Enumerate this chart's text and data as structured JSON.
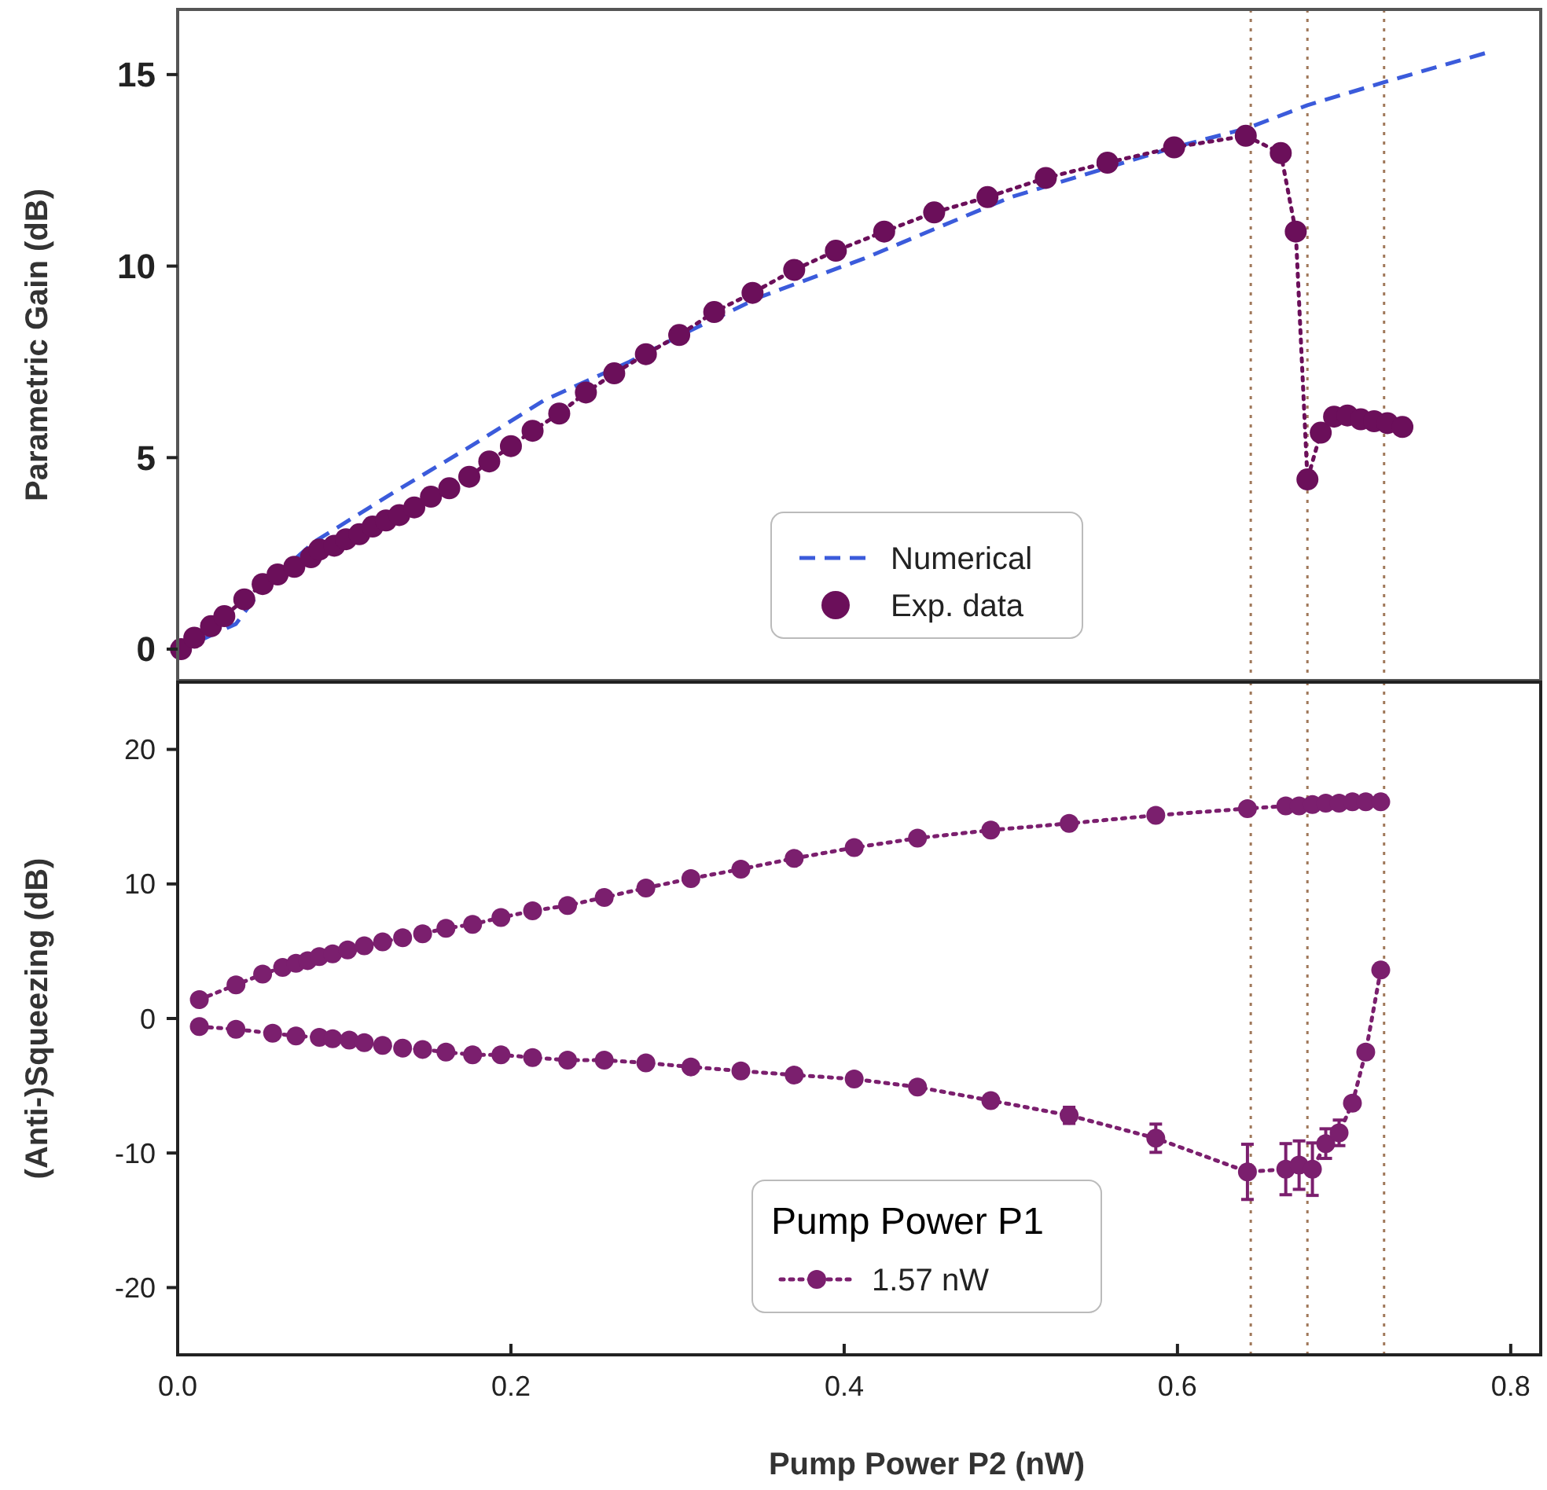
{
  "chart_data": [
    {
      "type": "line",
      "ylabel": "Parametric Gain (dB)",
      "xlim": [
        0,
        0.818
      ],
      "ylim": [
        -0.82,
        16.7
      ],
      "yticks": [
        0,
        5,
        10,
        15
      ],
      "tick_labels": "y",
      "legend": "bottom",
      "ref_lines": [
        {
          "axis": "x",
          "value": 0.644,
          "color": "#a0785a",
          "line_style": "dotted"
        },
        {
          "axis": "x",
          "value": 0.678,
          "color": "#a0785a",
          "line_style": "dotted"
        },
        {
          "axis": "x",
          "value": 0.724,
          "color": "#a0785a",
          "line_style": "dotted"
        }
      ],
      "series": [
        {
          "name": "Numerical",
          "color": "#3b5bdb",
          "line_style": "dashed",
          "marker": "none",
          "x": [
            0.002,
            0.035,
            0.051,
            0.082,
            0.13,
            0.176,
            0.22,
            0.271,
            0.302,
            0.35,
            0.412,
            0.5,
            0.598,
            0.642,
            0.678,
            0.724,
            0.788
          ],
          "values": [
            0,
            0.66,
            1.6,
            2.8,
            4.1,
            5.3,
            6.5,
            7.5,
            8.2,
            9.2,
            10.2,
            11.8,
            13.1,
            13.6,
            14.2,
            14.8,
            15.6
          ]
        },
        {
          "name": "Exp. data",
          "color": "#6b0f5a",
          "line_style": "dotted",
          "marker": "circle",
          "x": [
            0.002,
            0.01,
            0.02,
            0.028,
            0.04,
            0.051,
            0.06,
            0.07,
            0.08,
            0.085,
            0.094,
            0.101,
            0.109,
            0.117,
            0.125,
            0.133,
            0.142,
            0.152,
            0.163,
            0.175,
            0.187,
            0.2,
            0.213,
            0.229,
            0.245,
            0.262,
            0.281,
            0.301,
            0.322,
            0.345,
            0.37,
            0.395,
            0.424,
            0.454,
            0.486,
            0.521,
            0.558,
            0.598,
            0.641,
            0.662,
            0.671,
            0.678,
            0.686,
            0.694,
            0.702,
            0.71,
            0.718,
            0.726,
            0.735
          ],
          "values": [
            0,
            0.3,
            0.6,
            0.86,
            1.3,
            1.7,
            1.95,
            2.15,
            2.4,
            2.6,
            2.7,
            2.87,
            3.0,
            3.2,
            3.36,
            3.5,
            3.7,
            3.98,
            4.2,
            4.5,
            4.9,
            5.3,
            5.7,
            6.15,
            6.7,
            7.2,
            7.7,
            8.2,
            8.8,
            9.3,
            9.9,
            10.4,
            10.9,
            11.4,
            11.8,
            12.3,
            12.7,
            13.1,
            13.4,
            12.95,
            10.9,
            4.43,
            5.65,
            6.07,
            6.1,
            6.0,
            5.95,
            5.9,
            5.8
          ]
        }
      ]
    },
    {
      "type": "line",
      "ylabel": "(Anti-)Squeezing (dB)",
      "xlabel": "Pump Power P2 (nW)",
      "xlim": [
        0,
        0.818
      ],
      "ylim": [
        -25,
        25
      ],
      "xticks": [
        {
          "value": 0,
          "label": "0.0"
        },
        0.2,
        0.4,
        0.6,
        0.8
      ],
      "yticks": [
        -20,
        -10,
        0,
        10,
        20
      ],
      "legend": "bottom",
      "legend_title": "Pump Power P1",
      "marker": "circle",
      "line_style": "dotted",
      "ref_lines": [
        {
          "axis": "x",
          "value": 0.644,
          "color": "#a0785a",
          "line_style": "dotted"
        },
        {
          "axis": "x",
          "value": 0.678,
          "color": "#a0785a",
          "line_style": "dotted"
        },
        {
          "axis": "x",
          "value": 0.724,
          "color": "#a0785a",
          "line_style": "dotted"
        }
      ],
      "series": [
        {
          "name": "1.57 nW",
          "color": "#7b1f6e",
          "x": [
            0.013,
            0.035,
            0.051,
            0.063,
            0.071,
            0.078,
            0.085,
            0.093,
            0.102,
            0.112,
            0.123,
            0.135,
            0.147,
            0.161,
            0.177,
            0.194,
            0.213,
            0.234,
            0.256,
            0.281,
            0.308,
            0.338,
            0.37,
            0.406,
            0.444,
            0.488,
            0.535,
            0.587,
            0.642,
            0.665,
            0.673,
            0.681,
            0.689,
            0.697,
            0.705,
            0.713,
            0.722
          ],
          "values": [
            1.4,
            2.5,
            3.3,
            3.8,
            4.1,
            4.3,
            4.6,
            4.8,
            5.1,
            5.4,
            5.7,
            6.0,
            6.3,
            6.7,
            7.0,
            7.5,
            8.0,
            8.4,
            9.0,
            9.7,
            10.4,
            11.1,
            11.9,
            12.7,
            13.4,
            14.0,
            14.5,
            15.1,
            15.6,
            15.8,
            15.8,
            15.9,
            16.0,
            16.0,
            16.1,
            16.1,
            16.1
          ]
        },
        {
          "color": "#7b1f6e",
          "x": [
            0.013,
            0.035,
            0.057,
            0.071,
            0.085,
            0.093,
            0.103,
            0.112,
            0.123,
            0.135,
            0.147,
            0.161,
            0.177,
            0.194,
            0.213,
            0.234,
            0.256,
            0.281,
            0.308,
            0.338,
            0.37,
            0.406,
            0.444,
            0.488,
            0.535,
            0.587,
            0.642,
            0.665,
            0.673,
            0.681,
            0.689,
            0.697,
            0.705,
            0.713,
            0.722
          ],
          "values": [
            -0.6,
            -0.8,
            -1.1,
            -1.3,
            -1.4,
            -1.5,
            -1.6,
            -1.8,
            -2.0,
            -2.2,
            -2.3,
            -2.5,
            -2.7,
            -2.7,
            -2.9,
            -3.1,
            -3.1,
            -3.3,
            -3.6,
            -3.9,
            -4.2,
            -4.5,
            -5.1,
            -6.1,
            -7.2,
            -8.9,
            -11.4,
            -11.2,
            -10.9,
            -11.2,
            -9.3,
            -8.5,
            -6.3,
            -2.5,
            3.6
          ],
          "errors": [
            null,
            null,
            null,
            null,
            null,
            null,
            null,
            null,
            null,
            null,
            null,
            null,
            null,
            null,
            null,
            null,
            null,
            null,
            null,
            null,
            null,
            null,
            null,
            null,
            0.6,
            1.05,
            2.05,
            1.9,
            1.8,
            1.95,
            1.1,
            0.95,
            null,
            null,
            null
          ]
        }
      ]
    }
  ]
}
